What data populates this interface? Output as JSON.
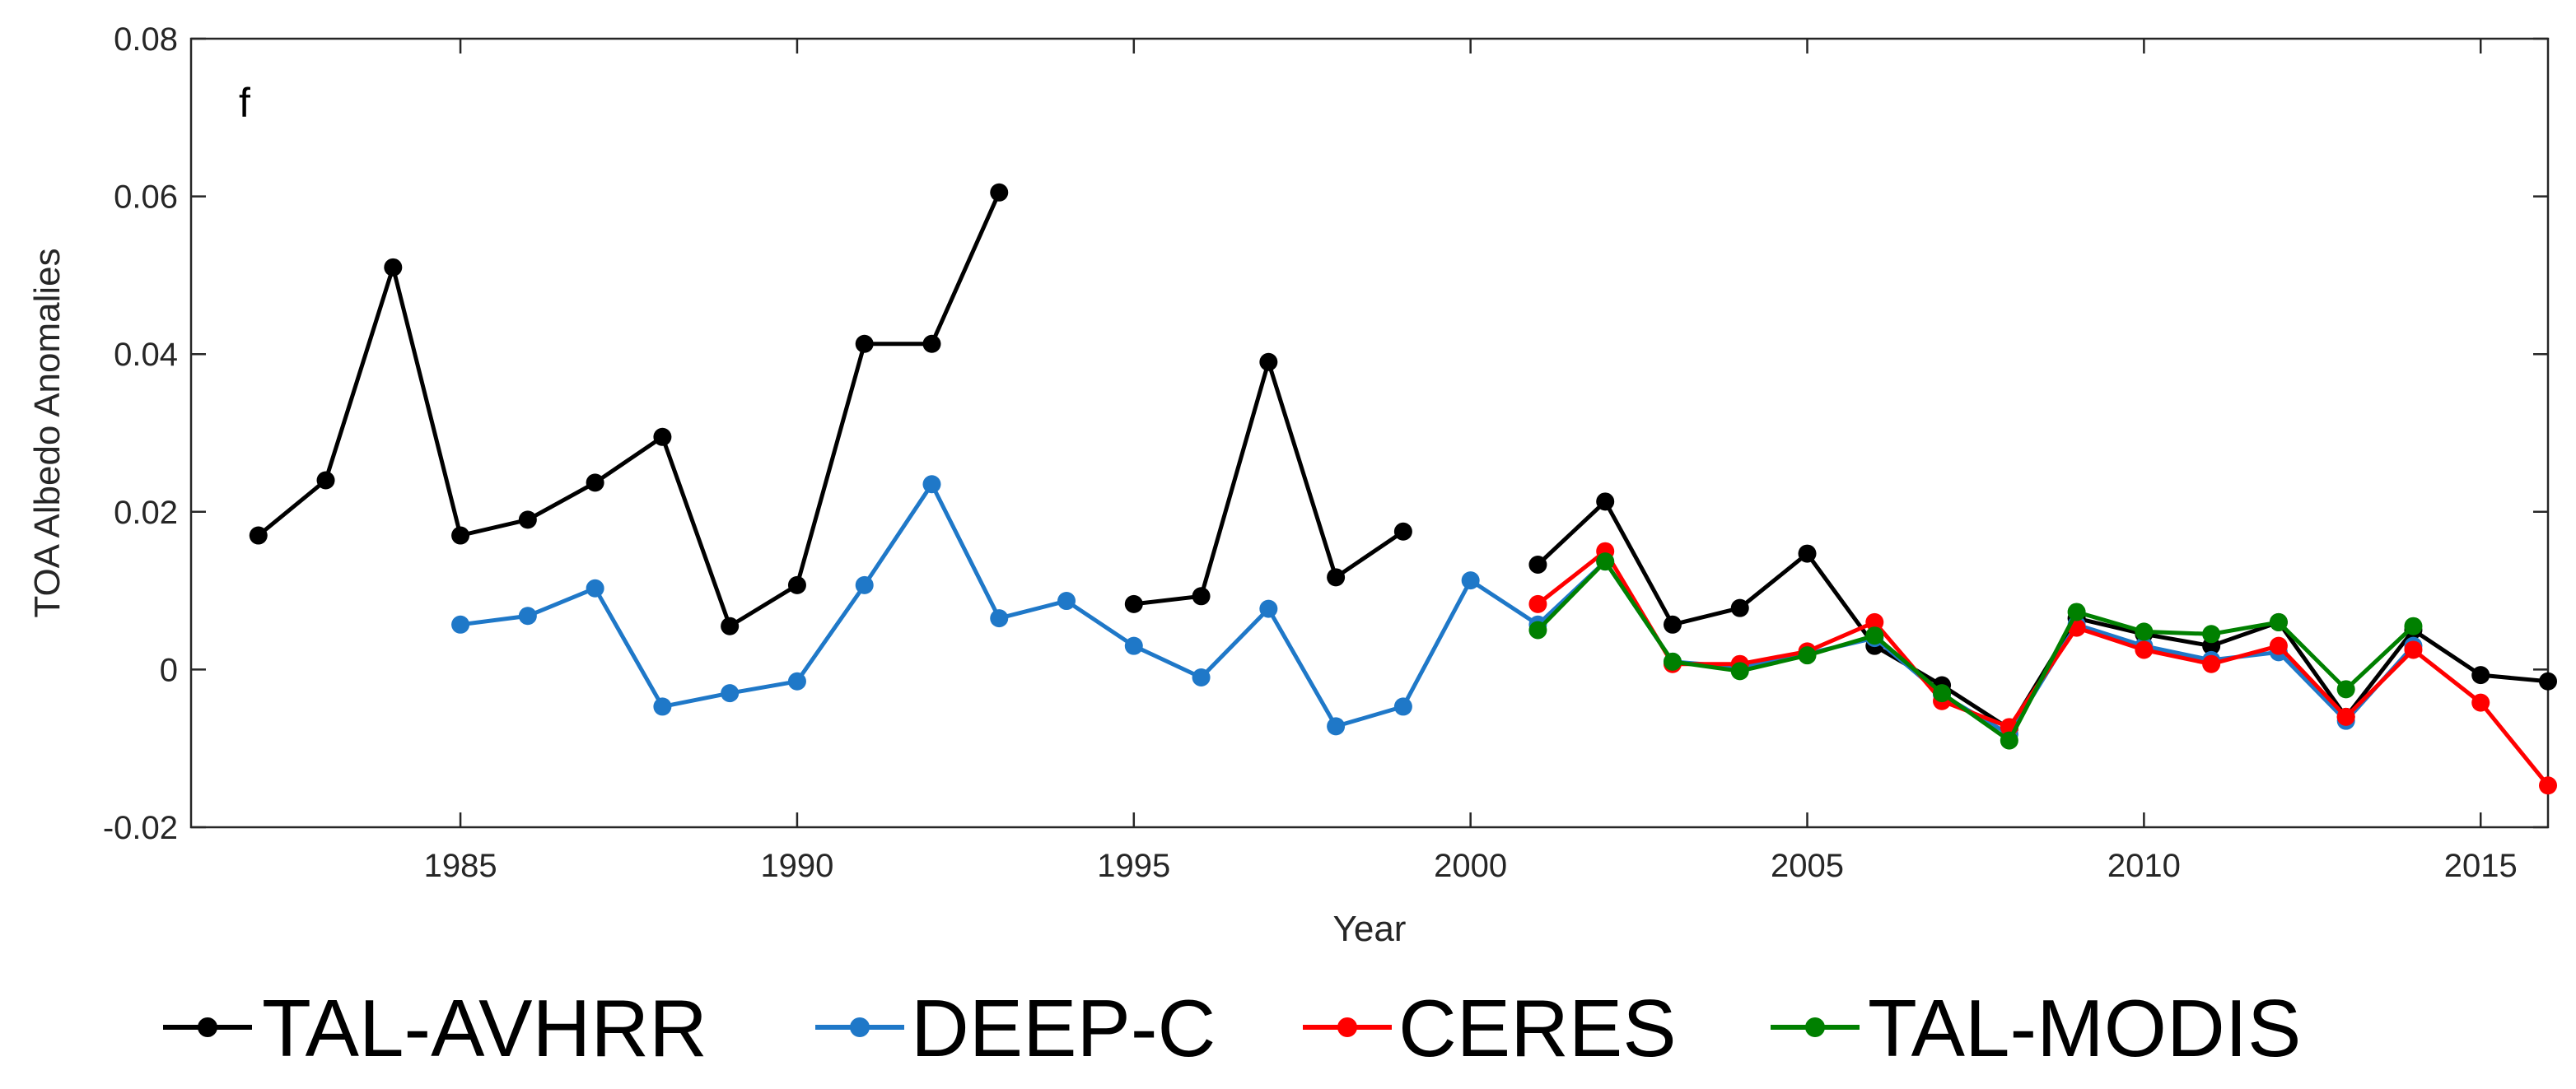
{
  "chart_data": {
    "type": "line",
    "title": "",
    "panel_label": "f",
    "xlabel": "Year",
    "ylabel": "TOA Albedo Anomalies",
    "xlim": [
      1981,
      2016
    ],
    "ylim": [
      -0.02,
      0.08
    ],
    "x_ticks": [
      1985,
      1990,
      1995,
      2000,
      2005,
      2010,
      2015
    ],
    "y_ticks": [
      -0.02,
      0,
      0.02,
      0.04,
      0.06,
      0.08
    ],
    "y_tick_labels": [
      "-0.02",
      "0",
      "0.02",
      "0.04",
      "0.06",
      "0.08"
    ],
    "grid": false,
    "legend_position": "bottom",
    "series": [
      {
        "name": "TAL-AVHRR",
        "color": "#000000",
        "segments": [
          [
            [
              1982,
              0.017
            ],
            [
              1983,
              0.024
            ],
            [
              1984,
              0.051
            ],
            [
              1985,
              0.017
            ],
            [
              1986,
              0.019
            ],
            [
              1987,
              0.0237
            ],
            [
              1988,
              0.0295
            ],
            [
              1989,
              0.0055
            ],
            [
              1990,
              0.0107
            ],
            [
              1991,
              0.0413
            ],
            [
              1992,
              0.0413
            ],
            [
              1993,
              0.0605
            ]
          ],
          [
            [
              1995,
              0.0083
            ],
            [
              1996,
              0.0093
            ],
            [
              1997,
              0.039
            ],
            [
              1998,
              0.0117
            ],
            [
              1999,
              0.0175
            ]
          ],
          [
            [
              2001,
              0.0133
            ],
            [
              2002,
              0.0213
            ],
            [
              2003,
              0.0057
            ],
            [
              2004,
              0.0078
            ],
            [
              2005,
              0.0147
            ],
            [
              2006,
              0.003
            ],
            [
              2007,
              -0.002
            ],
            [
              2008,
              -0.0075
            ],
            [
              2009,
              0.0065
            ],
            [
              2010,
              0.0045
            ],
            [
              2011,
              0.003
            ],
            [
              2012,
              0.006
            ],
            [
              2013,
              -0.006
            ],
            [
              2014,
              0.005
            ],
            [
              2015,
              -0.0007
            ],
            [
              2016,
              -0.0015
            ]
          ]
        ]
      },
      {
        "name": "DEEP-C",
        "color": "#1f78c8",
        "segments": [
          [
            [
              1985,
              0.0057
            ],
            [
              1986,
              0.0068
            ],
            [
              1987,
              0.0103
            ],
            [
              1988,
              -0.0047
            ],
            [
              1989,
              -0.003
            ],
            [
              1990,
              -0.0015
            ],
            [
              1991,
              0.0107
            ],
            [
              1992,
              0.0235
            ],
            [
              1993,
              0.0065
            ],
            [
              1994,
              0.0087
            ],
            [
              1995,
              0.003
            ],
            [
              1996,
              -0.001
            ],
            [
              1997,
              0.0077
            ],
            [
              1998,
              -0.0072
            ],
            [
              1999,
              -0.0047
            ],
            [
              2000,
              0.0113
            ],
            [
              2001,
              0.0057
            ],
            [
              2002,
              0.0137
            ],
            [
              2003,
              0.001
            ],
            [
              2004,
              0.0003
            ],
            [
              2005,
              0.002
            ],
            [
              2006,
              0.004
            ],
            [
              2007,
              -0.0032
            ],
            [
              2008,
              -0.0082
            ],
            [
              2009,
              0.0057
            ],
            [
              2010,
              0.003
            ],
            [
              2011,
              0.0012
            ],
            [
              2012,
              0.0022
            ],
            [
              2013,
              -0.0065
            ],
            [
              2014,
              0.003
            ]
          ]
        ]
      },
      {
        "name": "CERES",
        "color": "#ff0000",
        "segments": [
          [
            [
              2001,
              0.0083
            ],
            [
              2002,
              0.015
            ],
            [
              2003,
              0.0007
            ],
            [
              2004,
              0.0007
            ],
            [
              2005,
              0.0023
            ],
            [
              2006,
              0.006
            ],
            [
              2007,
              -0.004
            ],
            [
              2008,
              -0.0073
            ],
            [
              2009,
              0.0053
            ],
            [
              2010,
              0.0025
            ],
            [
              2011,
              0.0007
            ],
            [
              2012,
              0.003
            ],
            [
              2013,
              -0.006
            ],
            [
              2014,
              0.0025
            ],
            [
              2015,
              -0.0042
            ],
            [
              2016,
              -0.0147
            ]
          ]
        ]
      },
      {
        "name": "TAL-MODIS",
        "color": "#008000",
        "segments": [
          [
            [
              2001,
              0.005
            ],
            [
              2002,
              0.0137
            ],
            [
              2003,
              0.001
            ],
            [
              2004,
              -0.0002
            ],
            [
              2005,
              0.0018
            ],
            [
              2006,
              0.0043
            ],
            [
              2007,
              -0.003
            ],
            [
              2008,
              -0.009
            ],
            [
              2009,
              0.0073
            ],
            [
              2010,
              0.0048
            ],
            [
              2011,
              0.0045
            ],
            [
              2012,
              0.006
            ],
            [
              2013,
              -0.0025
            ],
            [
              2014,
              0.0055
            ]
          ]
        ]
      }
    ]
  }
}
